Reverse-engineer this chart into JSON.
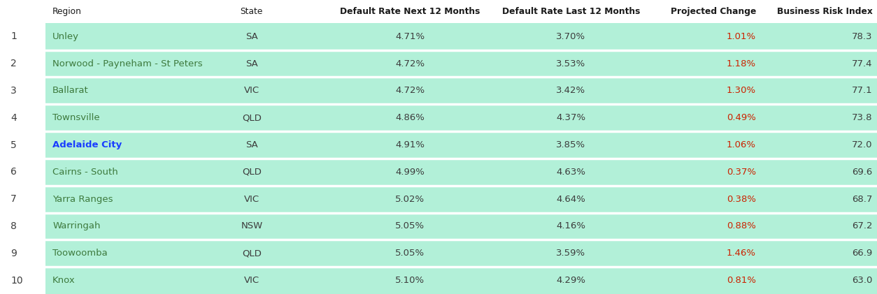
{
  "ranks": [
    "1",
    "2",
    "3",
    "4",
    "5",
    "6",
    "7",
    "8",
    "9",
    "10"
  ],
  "regions": [
    "Unley",
    "Norwood - Payneham - St Peters",
    "Ballarat",
    "Townsville",
    "Adelaide City",
    "Cairns - South",
    "Yarra Ranges",
    "Warringah",
    "Toowoomba",
    "Knox"
  ],
  "region_bold": [
    false,
    false,
    false,
    false,
    true,
    false,
    false,
    false,
    false,
    false
  ],
  "states": [
    "SA",
    "SA",
    "VIC",
    "QLD",
    "SA",
    "QLD",
    "VIC",
    "NSW",
    "QLD",
    "VIC"
  ],
  "default_next": [
    "4.71%",
    "4.72%",
    "4.72%",
    "4.86%",
    "4.91%",
    "4.99%",
    "5.02%",
    "5.05%",
    "5.05%",
    "5.10%"
  ],
  "default_last": [
    "3.70%",
    "3.53%",
    "3.42%",
    "4.37%",
    "3.85%",
    "4.63%",
    "4.64%",
    "4.16%",
    "3.59%",
    "4.29%"
  ],
  "projected_change": [
    "1.01%",
    "1.18%",
    "1.30%",
    "0.49%",
    "1.06%",
    "0.37%",
    "0.38%",
    "0.88%",
    "1.46%",
    "0.81%"
  ],
  "risk_index": [
    "78.3",
    "77.4",
    "77.1",
    "73.8",
    "72.0",
    "69.6",
    "68.7",
    "67.2",
    "66.9",
    "63.0"
  ],
  "bg_color": "#b2f0d8",
  "header_bg": "#ffffff",
  "text_color": "#3d3d3d",
  "region_color": "#3d7a3d",
  "region_bold_color": "#1a3eff",
  "rank_color": "#3d3d3d",
  "projected_color": "#cc2200",
  "header_text_color": "#1a1a1a",
  "fig_width": 12.54,
  "fig_height": 4.21,
  "col_positions": {
    "rank": 0.012,
    "region": 0.06,
    "state": 0.272,
    "next": 0.395,
    "last": 0.56,
    "proj": 0.762,
    "risk": 0.92
  },
  "header_labels": [
    [
      "region",
      "Region"
    ],
    [
      "state",
      "State"
    ],
    [
      "next",
      "Default Rate Next 12 Months"
    ],
    [
      "last",
      "Default Rate Last 12 Months"
    ],
    [
      "proj",
      "Projected Change"
    ],
    [
      "risk",
      "Business Risk Index"
    ]
  ]
}
